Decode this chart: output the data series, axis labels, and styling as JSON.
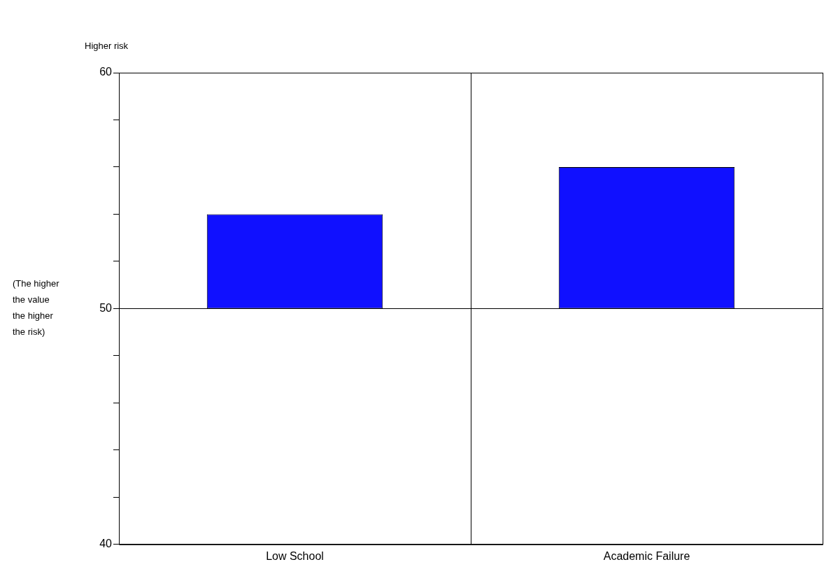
{
  "chart_data": {
    "type": "bar",
    "categories": [
      "Low School",
      "Academic Failure"
    ],
    "values": [
      4,
      6
    ],
    "base": [
      50,
      50
    ],
    "color": "#1010ff",
    "ylabel": "(The higher\nthe value\nthe higher\nthe risk)",
    "annotations": [
      "Higher risk"
    ],
    "ylim": [
      40,
      60
    ],
    "yticks": [
      40,
      {
        "value": 42,
        "label": null
      },
      {
        "value": 44,
        "label": null
      },
      {
        "value": 46,
        "label": null
      },
      {
        "value": 48,
        "label": null
      },
      50,
      {
        "value": 52,
        "label": null
      },
      {
        "value": 54,
        "label": null
      },
      {
        "value": 56,
        "label": null
      },
      {
        "value": 58,
        "label": null
      },
      60
    ],
    "ref_lines": [
      {
        "axis": "y",
        "value": 50,
        "color": "#000000"
      }
    ],
    "grid": "x",
    "legend": false
  }
}
